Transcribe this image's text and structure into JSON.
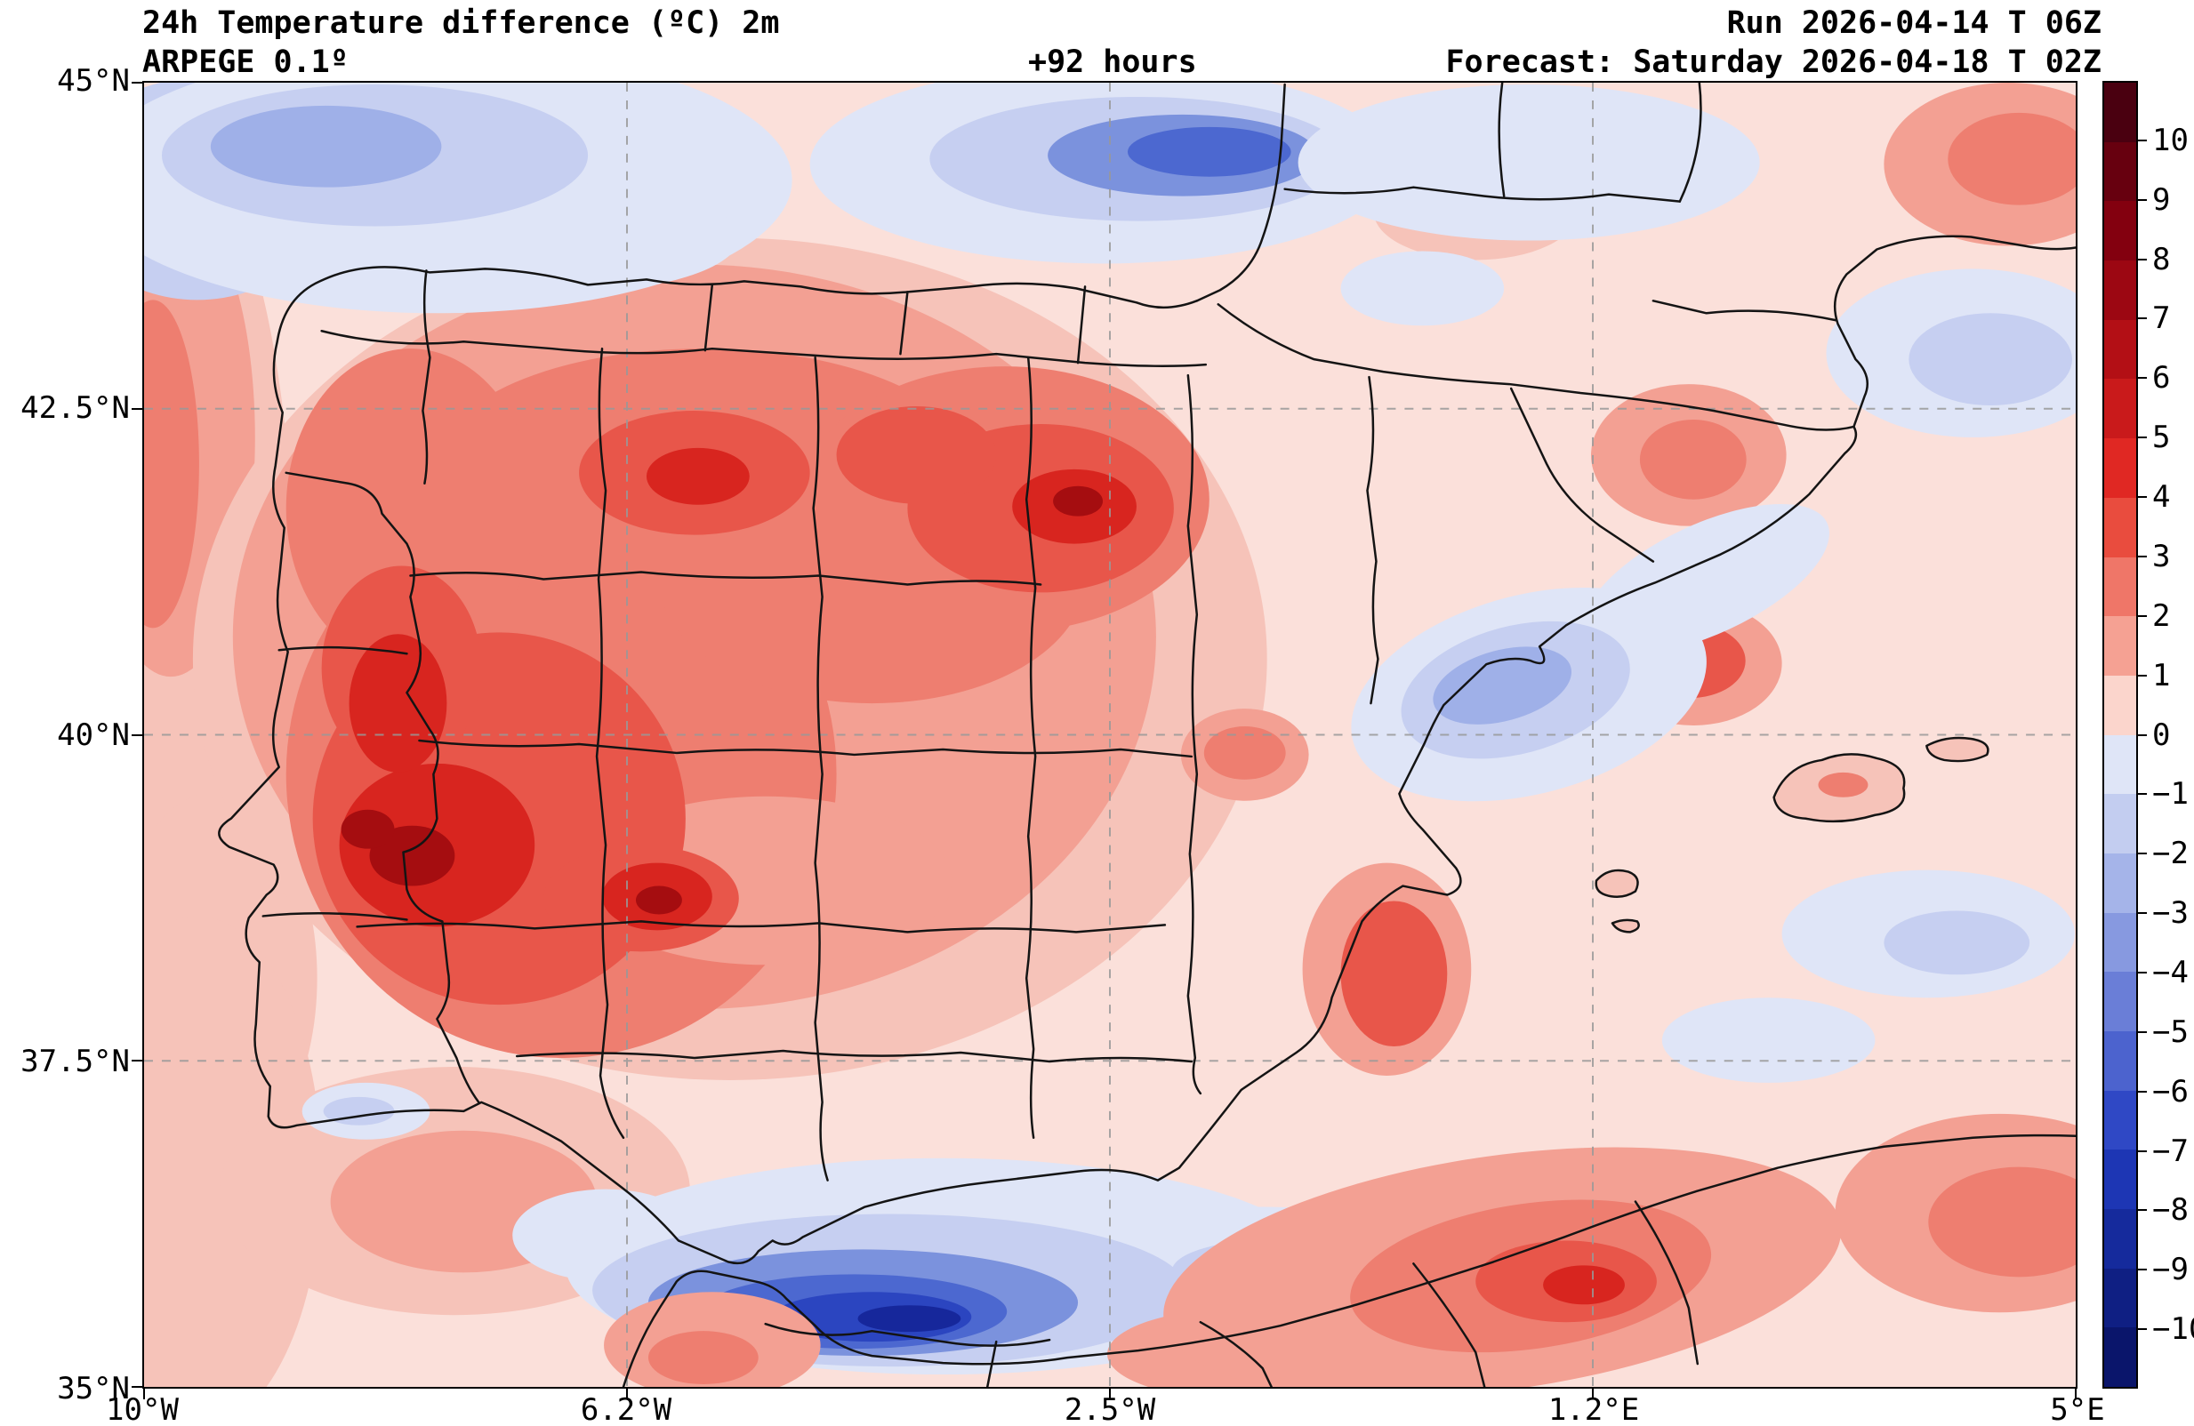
{
  "header": {
    "title_line1": "24h Temperature difference (ºC) 2m",
    "title_line2": "ARPEGE 0.1º",
    "lead_time": "+92 hours",
    "run": "Run 2026-04-14 T 06Z",
    "forecast": "Forecast: Saturday 2026-04-18 T 02Z"
  },
  "axes": {
    "y_ticks": [
      "45°N",
      "42.5°N",
      "40°N",
      "37.5°N",
      "35°N"
    ],
    "x_ticks": [
      "10°W",
      "6.2°W",
      "2.5°W",
      "1.2°E",
      "5°E"
    ]
  },
  "colorbar": {
    "tick_labels": [
      "10",
      "9",
      "8",
      "7",
      "6",
      "5",
      "4",
      "3",
      "2",
      "1",
      "0",
      "−1",
      "−2",
      "−3",
      "−4",
      "−5",
      "−6",
      "−7",
      "−8",
      "−9",
      "−10"
    ],
    "band_colors": [
      "#4a0010",
      "#67000f",
      "#83000f",
      "#9c0712",
      "#b30f15",
      "#c91a1b",
      "#e02823",
      "#e94c3e",
      "#ef7668",
      "#f5a193",
      "#fbd5cc",
      "#dfe5f7",
      "#c3cdf0",
      "#a5b4e9",
      "#8799e0",
      "#6a7ed7",
      "#4c63ce",
      "#2f48c5",
      "#1d36b4",
      "#152a9c",
      "#0f1f83",
      "#0a156b"
    ]
  },
  "palette": {
    "base": "#fbe0da",
    "pink1": "#f6c3b9",
    "salmon2": "#f3a093",
    "red3": "#ee7e70",
    "red4": "#e8564a",
    "red5": "#d8251f",
    "red6": "#a50d10",
    "blue1": "#dfe5f7",
    "blue2": "#c6cff1",
    "blue3": "#9fb0e8",
    "blue4": "#7b92dd",
    "blue5": "#4c68d0",
    "blue6": "#2b45c0",
    "blue7": "#16279b",
    "border": "#141414",
    "grid": "#999999"
  },
  "chart_data": {
    "type": "heatmap",
    "subtype": "filled-contour-weather-map",
    "title": "24h Temperature difference (ºC) 2m",
    "model": "ARPEGE 0.1º",
    "lead_time": "+92 hours",
    "run": "Run 2026-04-14 T 06Z",
    "valid": "Forecast: Saturday 2026-04-18 T 02Z",
    "region": "Iberian Peninsula and western Mediterranean",
    "x_tick_labels": [
      "10°W",
      "6.2°W",
      "2.5°W",
      "1.2°E",
      "5°E"
    ],
    "y_tick_labels": [
      "45°N",
      "42.5°N",
      "40°N",
      "37.5°N",
      "35°N"
    ],
    "colorbar_levels": [
      10,
      9,
      8,
      7,
      6,
      5,
      4,
      3,
      2,
      1,
      0,
      -1,
      -2,
      -3,
      -4,
      -5,
      -6,
      -7,
      -8,
      -9,
      -10
    ],
    "units": "ºC",
    "grid": true,
    "legend_position": "right-colorbar",
    "notable_features": [
      {
        "area": "western Iberia (Portugal / Extremadura)",
        "value": "+5 to +7"
      },
      {
        "area": "north-central and northeast Spain",
        "value": "+3 to +6"
      },
      {
        "area": "Bay of Biscay band near 44-45N",
        "value": "-2 to -5"
      },
      {
        "area": "Alboran Sea / south coast band",
        "value": "-4 to -8"
      },
      {
        "area": "Mediterranean off Valencia",
        "value": "-1 to -3"
      },
      {
        "area": "North Africa interior",
        "value": "+2 to +5"
      }
    ]
  }
}
